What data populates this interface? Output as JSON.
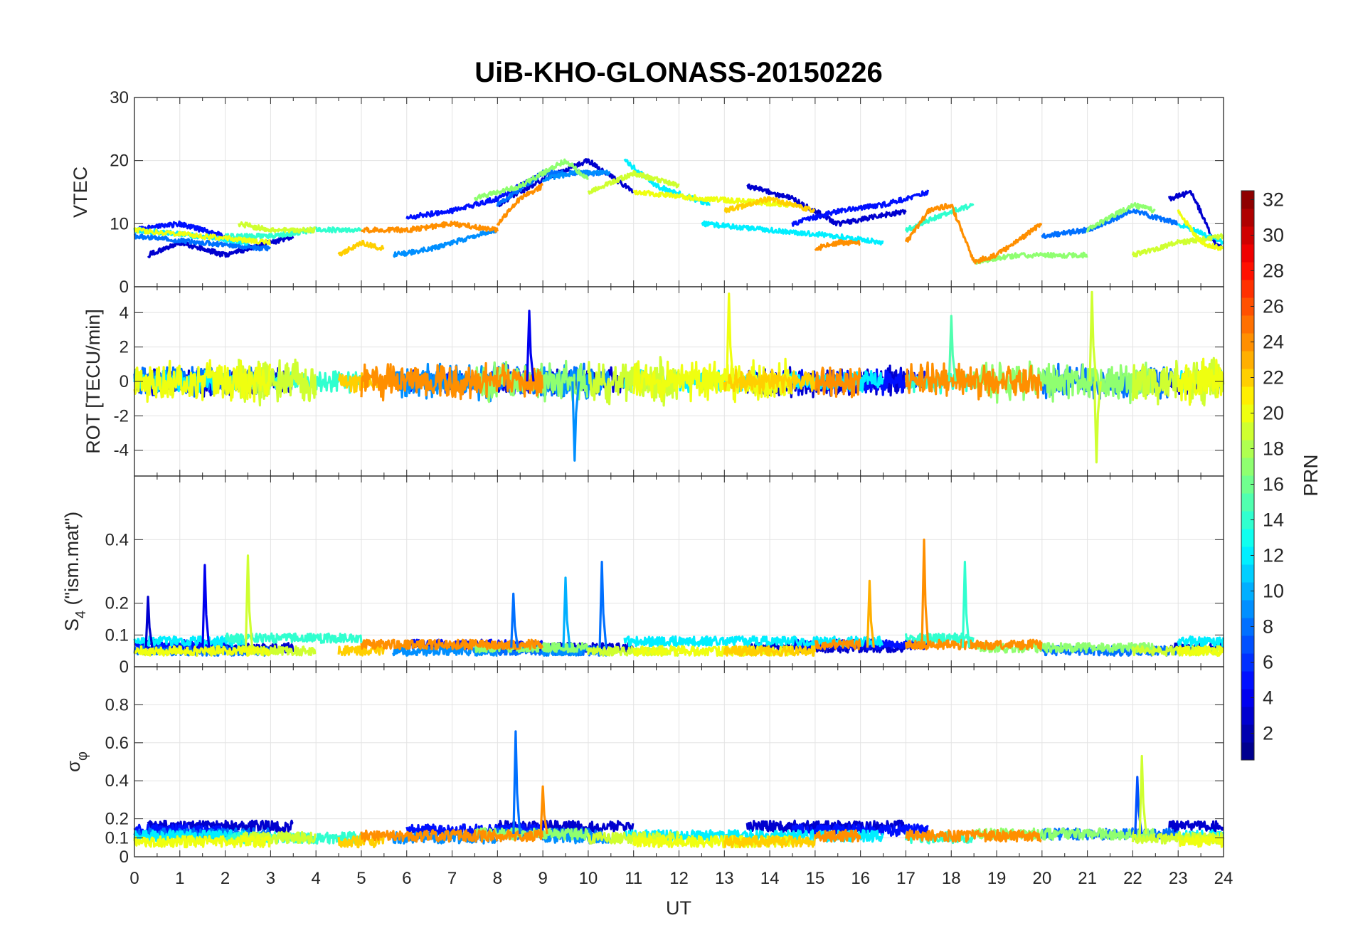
{
  "chart_data": {
    "type": "line",
    "title": "UiB-KHO-GLONASS-20150226",
    "xlabel": "UT",
    "xlim": [
      0,
      24
    ],
    "xticks": [
      0,
      1,
      2,
      3,
      4,
      5,
      6,
      7,
      8,
      9,
      10,
      11,
      12,
      13,
      14,
      15,
      16,
      17,
      18,
      19,
      20,
      21,
      22,
      23,
      24
    ],
    "grid": true,
    "panels": [
      {
        "id": "vtec",
        "ylabel": "VTEC",
        "ylim": [
          0,
          30
        ],
        "yticks": [
          0,
          10,
          20,
          30
        ]
      },
      {
        "id": "rot",
        "ylabel": "ROT [TECU/min]",
        "ylim": [
          -5.5,
          5.5
        ],
        "yticks": [
          -4,
          -2,
          0,
          2,
          4
        ]
      },
      {
        "id": "s4",
        "ylabel_main": "S",
        "ylabel_sub": "4",
        "ylabel_rest": " (\"ism.mat\")",
        "ylim": [
          0,
          0.6
        ],
        "yticks": [
          0,
          0.1,
          0.2,
          0.4
        ]
      },
      {
        "id": "sigma",
        "ylabel_main": "σ",
        "ylabel_sub": "φ",
        "ylim": [
          0,
          1
        ],
        "yticks": [
          0,
          0.1,
          0.2,
          0.4,
          0.6,
          0.8
        ]
      }
    ],
    "colorbar": {
      "label": "PRN",
      "range": [
        1,
        32
      ],
      "ticks": [
        2,
        4,
        6,
        8,
        10,
        12,
        14,
        16,
        18,
        20,
        22,
        24,
        26,
        28,
        30,
        32
      ],
      "colormap": "jet"
    },
    "series": [
      {
        "prn": 3,
        "segments": [
          {
            "t": [
              0.3,
              1,
              2,
              3,
              3.5
            ],
            "vtec": [
              5,
              7,
              5,
              7,
              8
            ]
          },
          {
            "t": [
              8,
              9,
              10,
              11
            ],
            "vtec": [
              13,
              17,
              20,
              15
            ]
          },
          {
            "t": [
              13.5,
              14.5,
              15.5,
              17
            ],
            "vtec": [
              16,
              14,
              10,
              12
            ]
          },
          {
            "t": [
              22.8,
              23.3,
              23.8,
              24
            ],
            "vtec": [
              14,
              15,
              7,
              6
            ]
          }
        ],
        "rot_amp": 0.8,
        "s4_base": 0.06,
        "sigma_base": 0.16
      },
      {
        "prn": 5,
        "segments": [
          {
            "t": [
              0,
              1,
              2
            ],
            "vtec": [
              9,
              10,
              8
            ]
          },
          {
            "t": [
              6,
              7,
              8,
              9
            ],
            "vtec": [
              11,
              12,
              14,
              18
            ]
          },
          {
            "t": [
              14.5,
              15.5,
              16.5,
              17.5
            ],
            "vtec": [
              10,
              12,
              13,
              15
            ]
          }
        ],
        "rot_amp": 0.7,
        "s4_base": 0.07,
        "sigma_base": 0.14
      },
      {
        "prn": 8,
        "segments": [
          {
            "t": [
              0,
              1.5,
              3
            ],
            "vtec": [
              8,
              7,
              6
            ]
          },
          {
            "t": [
              8,
              9,
              10.3
            ],
            "vtec": [
              13,
              18,
              18
            ]
          },
          {
            "t": [
              20,
              21,
              22,
              23
            ],
            "vtec": [
              8,
              9,
              12,
              10
            ]
          }
        ],
        "rot_amp": 0.9,
        "s4_base": 0.05,
        "sigma_base": 0.12
      },
      {
        "prn": 9,
        "segments": [
          {
            "t": [
              5.7,
              6.5,
              7.5,
              8
            ],
            "vtec": [
              5,
              6,
              8,
              9
            ]
          },
          {
            "t": [
              9,
              9.7,
              10.5
            ],
            "vtec": [
              17,
              18,
              18
            ]
          }
        ],
        "rot_amp": 1.0,
        "s4_base": 0.05,
        "sigma_base": 0.1
      },
      {
        "prn": 12,
        "segments": [
          {
            "t": [
              0,
              1.5,
              2.5
            ],
            "vtec": [
              9,
              8,
              7
            ]
          },
          {
            "t": [
              10.8,
              11.5,
              12.7
            ],
            "vtec": [
              20,
              16,
              13
            ]
          },
          {
            "t": [
              12.5,
              14,
              15.5,
              16.5
            ],
            "vtec": [
              10,
              9,
              8,
              7
            ]
          },
          {
            "t": [
              23,
              24
            ],
            "vtec": [
              10,
              7
            ]
          }
        ],
        "rot_amp": 0.6,
        "s4_base": 0.08,
        "sigma_base": 0.11
      },
      {
        "prn": 14,
        "segments": [
          {
            "t": [
              2,
              3,
              4,
              5
            ],
            "vtec": [
              8,
              8,
              9,
              9
            ]
          },
          {
            "t": [
              17,
              18,
              18.5
            ],
            "vtec": [
              9,
              12,
              13
            ]
          }
        ],
        "rot_amp": 0.6,
        "s4_base": 0.09,
        "sigma_base": 0.1
      },
      {
        "prn": 17,
        "segments": [
          {
            "t": [
              7.5,
              8.5,
              9.5,
              10
            ],
            "vtec": [
              14,
              16,
              20,
              17
            ]
          },
          {
            "t": [
              18.5,
              19.5,
              21
            ],
            "vtec": [
              4,
              5,
              5
            ]
          },
          {
            "t": [
              21,
              22,
              22.5
            ],
            "vtec": [
              9,
              13,
              12
            ]
          }
        ],
        "rot_amp": 1.1,
        "s4_base": 0.06,
        "sigma_base": 0.12
      },
      {
        "prn": 19,
        "segments": [
          {
            "t": [
              2.3,
              3,
              4
            ],
            "vtec": [
              10,
              9,
              9
            ]
          },
          {
            "t": [
              10,
              11,
              12
            ],
            "vtec": [
              15,
              18,
              16
            ]
          },
          {
            "t": [
              22,
              23,
              24
            ],
            "vtec": [
              5,
              7,
              8
            ]
          }
        ],
        "rot_amp": 1.3,
        "s4_base": 0.05,
        "sigma_base": 0.1
      },
      {
        "prn": 20,
        "segments": [
          {
            "t": [
              0,
              1.5,
              3
            ],
            "vtec": [
              9,
              8,
              7
            ]
          },
          {
            "t": [
              11,
              12.5,
              14.5
            ],
            "vtec": [
              15,
              14,
              13
            ]
          },
          {
            "t": [
              23,
              23.5,
              24
            ],
            "vtec": [
              12,
              7,
              6
            ]
          }
        ],
        "rot_amp": 1.2,
        "s4_base": 0.05,
        "sigma_base": 0.08
      },
      {
        "prn": 22,
        "segments": [
          {
            "t": [
              4.5,
              5,
              5.5
            ],
            "vtec": [
              5,
              7,
              6
            ]
          },
          {
            "t": [
              13,
              14,
              15
            ],
            "vtec": [
              12,
              14,
              12
            ]
          }
        ],
        "rot_amp": 0.6,
        "s4_base": 0.05,
        "sigma_base": 0.08
      },
      {
        "prn": 24,
        "segments": [
          {
            "t": [
              5,
              6,
              7,
              8
            ],
            "vtec": [
              9,
              9,
              10,
              9
            ]
          },
          {
            "t": [
              8,
              8.5,
              9
            ],
            "vtec": [
              10,
              14,
              16
            ]
          },
          {
            "t": [
              15,
              15.5,
              16
            ],
            "vtec": [
              6,
              7,
              7
            ]
          },
          {
            "t": [
              17,
              17.5,
              18,
              18.5,
              19,
              20
            ],
            "vtec": [
              7,
              12,
              13,
              4,
              5,
              10
            ]
          }
        ],
        "rot_amp": 1.0,
        "s4_base": 0.07,
        "sigma_base": 0.11
      }
    ],
    "spikes": [
      {
        "prn": 3,
        "panel": "s4",
        "t": 0.3,
        "value": 0.22
      },
      {
        "prn": 4,
        "panel": "s4",
        "t": 1.55,
        "value": 0.32
      },
      {
        "prn": 19,
        "panel": "s4",
        "t": 2.5,
        "value": 0.35
      },
      {
        "prn": 8,
        "panel": "s4",
        "t": 8.35,
        "value": 0.23
      },
      {
        "prn": 10,
        "panel": "s4",
        "t": 9.5,
        "value": 0.28
      },
      {
        "prn": 8,
        "panel": "s4",
        "t": 10.3,
        "value": 0.33
      },
      {
        "prn": 23,
        "panel": "s4",
        "t": 16.2,
        "value": 0.27
      },
      {
        "prn": 24,
        "panel": "s4",
        "t": 17.4,
        "value": 0.4
      },
      {
        "prn": 14,
        "panel": "s4",
        "t": 18.3,
        "value": 0.33
      },
      {
        "prn": 8,
        "panel": "sigma",
        "t": 8.4,
        "value": 0.66
      },
      {
        "prn": 24,
        "panel": "sigma",
        "t": 9.0,
        "value": 0.37
      },
      {
        "prn": 7,
        "panel": "sigma",
        "t": 22.1,
        "value": 0.42
      },
      {
        "prn": 19,
        "panel": "sigma",
        "t": 22.2,
        "value": 0.53
      },
      {
        "prn": 9,
        "panel": "rot",
        "t": 9.7,
        "value": -4.6
      },
      {
        "prn": 4,
        "panel": "rot",
        "t": 8.7,
        "value": 4.1
      },
      {
        "prn": 20,
        "panel": "rot",
        "t": 13.1,
        "value": 5.1
      },
      {
        "prn": 19,
        "panel": "rot",
        "t": 21.1,
        "value": 5.2
      },
      {
        "prn": 19,
        "panel": "rot",
        "t": 21.2,
        "value": -4.7
      },
      {
        "prn": 15,
        "panel": "rot",
        "t": 18.0,
        "value": 3.8
      }
    ]
  }
}
